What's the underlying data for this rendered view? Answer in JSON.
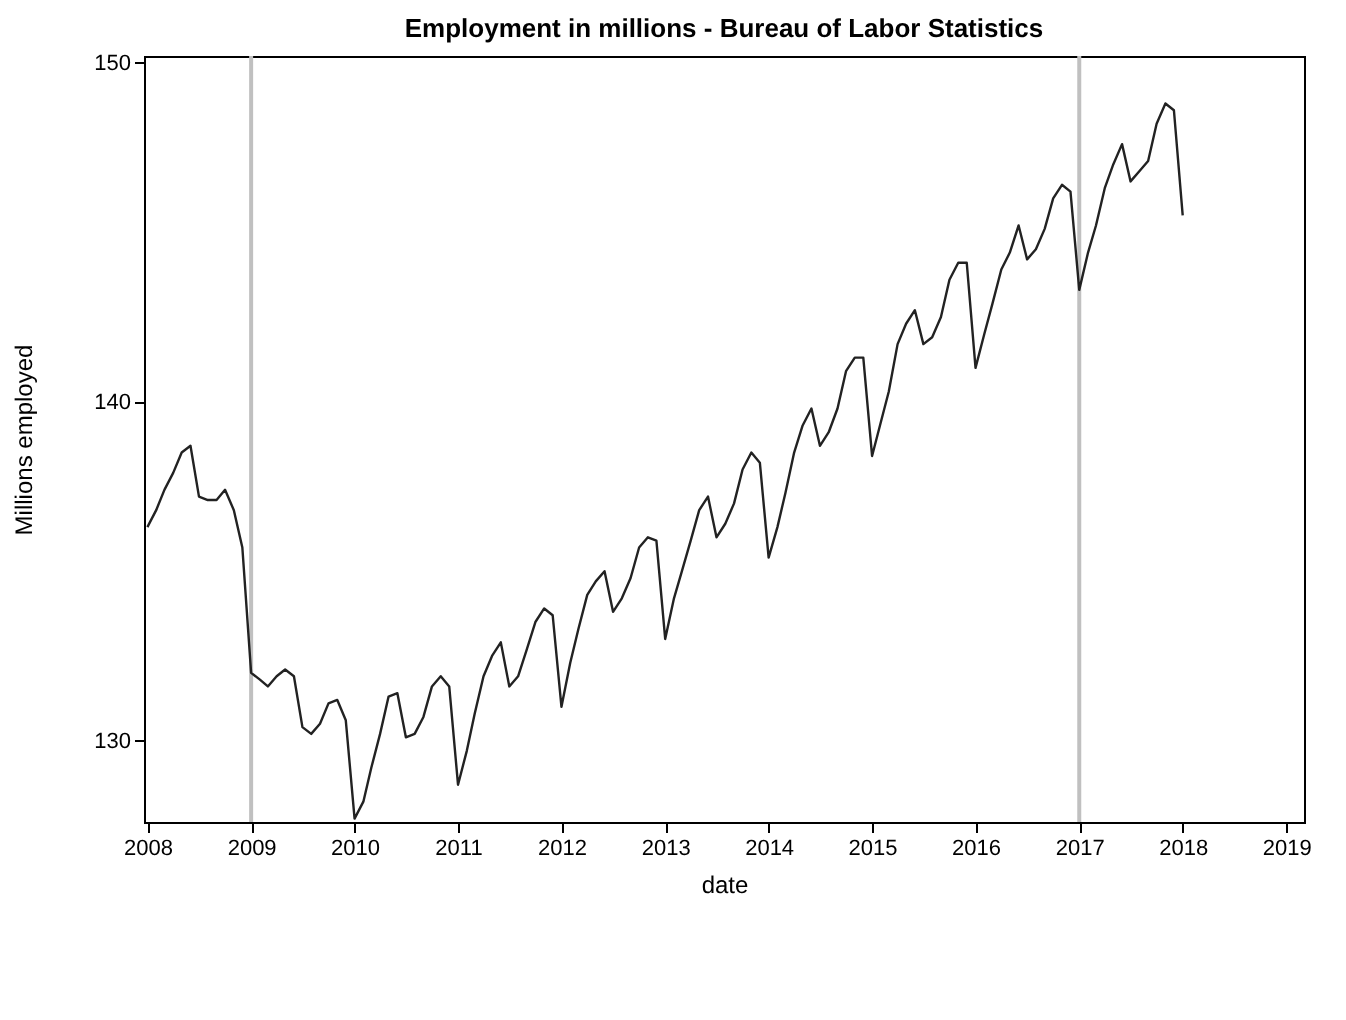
{
  "chart_data": {
    "type": "line",
    "title": "Employment in millions - Bureau of Labor Statistics",
    "xlabel": "date",
    "ylabel": "Millions employed",
    "x": [
      "2008-01",
      "2008-02",
      "2008-03",
      "2008-04",
      "2008-05",
      "2008-06",
      "2008-07",
      "2008-08",
      "2008-09",
      "2008-10",
      "2008-11",
      "2008-12",
      "2009-01",
      "2009-02",
      "2009-03",
      "2009-04",
      "2009-05",
      "2009-06",
      "2009-07",
      "2009-08",
      "2009-09",
      "2009-10",
      "2009-11",
      "2009-12",
      "2010-01",
      "2010-02",
      "2010-03",
      "2010-04",
      "2010-05",
      "2010-06",
      "2010-07",
      "2010-08",
      "2010-09",
      "2010-10",
      "2010-11",
      "2010-12",
      "2011-01",
      "2011-02",
      "2011-03",
      "2011-04",
      "2011-05",
      "2011-06",
      "2011-07",
      "2011-08",
      "2011-09",
      "2011-10",
      "2011-11",
      "2011-12",
      "2012-01",
      "2012-02",
      "2012-03",
      "2012-04",
      "2012-05",
      "2012-06",
      "2012-07",
      "2012-08",
      "2012-09",
      "2012-10",
      "2012-11",
      "2012-12",
      "2013-01",
      "2013-02",
      "2013-03",
      "2013-04",
      "2013-05",
      "2013-06",
      "2013-07",
      "2013-08",
      "2013-09",
      "2013-10",
      "2013-11",
      "2013-12",
      "2014-01",
      "2014-02",
      "2014-03",
      "2014-04",
      "2014-05",
      "2014-06",
      "2014-07",
      "2014-08",
      "2014-09",
      "2014-10",
      "2014-11",
      "2014-12",
      "2015-01",
      "2015-02",
      "2015-03",
      "2015-04",
      "2015-05",
      "2015-06",
      "2015-07",
      "2015-08",
      "2015-09",
      "2015-10",
      "2015-11",
      "2015-12",
      "2016-01",
      "2016-02",
      "2016-03",
      "2016-04",
      "2016-05",
      "2016-06",
      "2016-07",
      "2016-08",
      "2016-09",
      "2016-10",
      "2016-11",
      "2016-12",
      "2017-01",
      "2017-02",
      "2017-03",
      "2017-04",
      "2017-05",
      "2017-06",
      "2017-07",
      "2017-08",
      "2017-09",
      "2017-10",
      "2017-11",
      "2017-12",
      "2018-01"
    ],
    "series": [
      {
        "color": "#222222",
        "values": [
          136.3,
          136.8,
          137.4,
          137.9,
          138.5,
          138.7,
          137.2,
          137.1,
          137.1,
          137.4,
          136.8,
          135.7,
          132.0,
          131.8,
          131.6,
          131.9,
          132.1,
          131.9,
          130.4,
          130.2,
          130.5,
          131.1,
          131.2,
          130.6,
          127.7,
          128.2,
          129.2,
          130.2,
          131.3,
          131.4,
          130.1,
          130.2,
          130.7,
          131.6,
          131.9,
          131.6,
          128.7,
          129.7,
          130.8,
          131.9,
          132.5,
          132.9,
          131.6,
          131.9,
          132.7,
          133.5,
          133.9,
          133.7,
          131.0,
          132.3,
          133.3,
          134.3,
          134.7,
          135.0,
          133.8,
          134.2,
          134.8,
          135.7,
          136.0,
          135.9,
          133.0,
          134.2,
          135.0,
          135.9,
          136.8,
          137.2,
          136.0,
          136.4,
          137.0,
          138.0,
          138.5,
          138.2,
          135.4,
          136.3,
          137.3,
          138.5,
          139.3,
          139.8,
          138.7,
          139.1,
          139.8,
          140.9,
          141.3,
          141.3,
          138.4,
          139.4,
          140.3,
          141.7,
          142.3,
          142.7,
          141.7,
          141.9,
          142.5,
          143.6,
          144.1,
          144.1,
          141.0,
          142.0,
          142.9,
          143.9,
          144.4,
          145.2,
          144.2,
          144.5,
          145.1,
          146.0,
          146.4,
          146.2,
          143.3,
          144.4,
          145.2,
          146.3,
          147.0,
          147.6,
          146.5,
          146.8,
          147.1,
          148.2,
          148.8,
          148.6,
          145.5
        ]
      }
    ],
    "xlim": [
      "2007-12-20",
      "2019-03-05"
    ],
    "xticks": [
      {
        "value": "2008-01-01",
        "label": "2008"
      },
      {
        "value": "2009-01-01",
        "label": "2009"
      },
      {
        "value": "2010-01-01",
        "label": "2010"
      },
      {
        "value": "2011-01-01",
        "label": "2011"
      },
      {
        "value": "2012-01-01",
        "label": "2012"
      },
      {
        "value": "2013-01-01",
        "label": "2013"
      },
      {
        "value": "2014-01-01",
        "label": "2014"
      },
      {
        "value": "2015-01-01",
        "label": "2015"
      },
      {
        "value": "2016-01-01",
        "label": "2016"
      },
      {
        "value": "2017-01-01",
        "label": "2017"
      },
      {
        "value": "2018-01-01",
        "label": "2018"
      },
      {
        "value": "2019-01-01",
        "label": "2019"
      }
    ],
    "ylim": [
      127.6,
      150.2
    ],
    "yticks": [
      130,
      140,
      150
    ],
    "ref_lines": [
      {
        "axis": "x",
        "value": "2009-01-01",
        "color": "#c0c0c0"
      },
      {
        "axis": "x",
        "value": "2017-01-01",
        "color": "#c0c0c0"
      }
    ],
    "grid": false,
    "marker": "none",
    "line_style": "solid"
  }
}
